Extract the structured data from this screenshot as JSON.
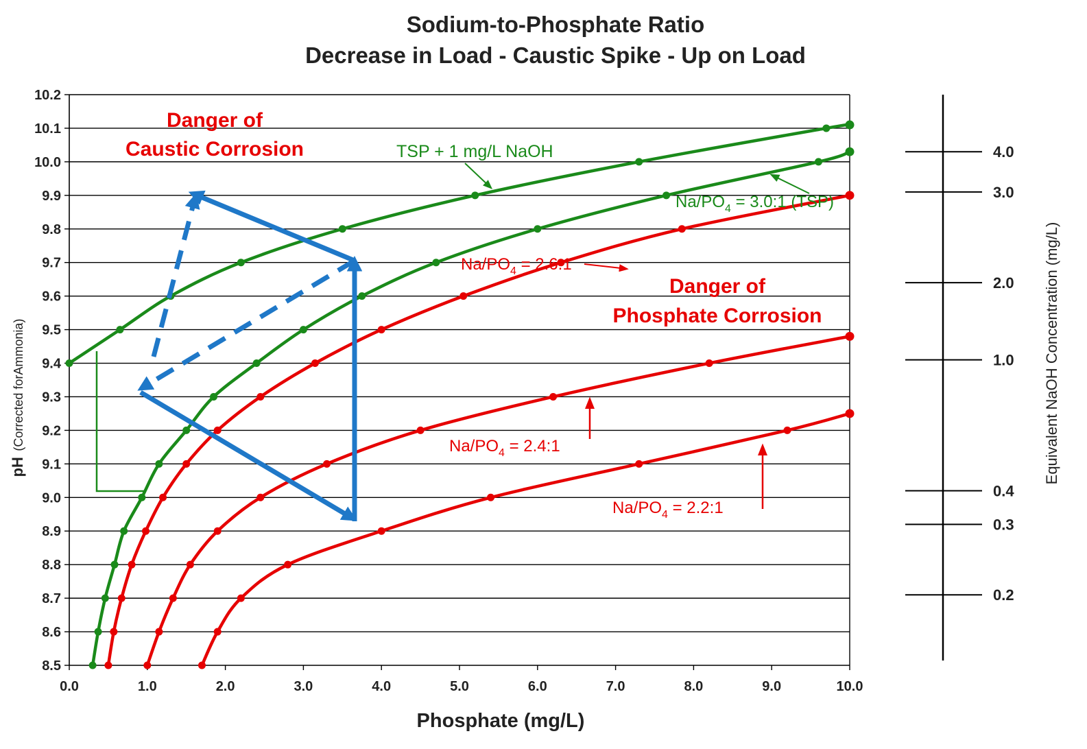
{
  "chart_data": {
    "type": "line",
    "title_line1": "Sodium-to-Phosphate Ratio",
    "title_line2": "Decrease in Load - Caustic Spike - Up on Load",
    "xlabel": "Phosphate (mg/L)",
    "ylabel_main": "pH",
    "ylabel_paren": "(Corrected forAmmonia)",
    "y2label": "Equivalent NaOH Concentration (mg/L)",
    "xlim": [
      0,
      10
    ],
    "ylim": [
      8.5,
      10.2
    ],
    "grid": "horizontal",
    "x_ticks": [
      "0.0",
      "1.0",
      "2.0",
      "3.0",
      "4.0",
      "5.0",
      "6.0",
      "7.0",
      "8.0",
      "9.0",
      "10.0"
    ],
    "y_ticks": [
      "10.2",
      "10.1",
      "10.0",
      "9.9",
      "9.8",
      "9.7",
      "9.6",
      "9.5",
      "9.4",
      "9.3",
      "9.2",
      "9.1",
      "9.0",
      "8.9",
      "8.8",
      "8.7",
      "8.6",
      "8.5"
    ],
    "naoh_scale": [
      {
        "label": "4.0",
        "ph": 10.03
      },
      {
        "label": "3.0",
        "ph": 9.91
      },
      {
        "label": "2.0",
        "ph": 9.64
      },
      {
        "label": "1.0",
        "ph": 9.41
      },
      {
        "label": "0.4",
        "ph": 9.02
      },
      {
        "label": "0.3",
        "ph": 8.92
      },
      {
        "label": "0.2",
        "ph": 8.71
      }
    ],
    "series": [
      {
        "color": "#1a8a1a",
        "points": [
          [
            0,
            9.4
          ],
          [
            0.65,
            9.5
          ],
          [
            1.3,
            9.6
          ],
          [
            2.2,
            9.7
          ],
          [
            3.5,
            9.8
          ],
          [
            5.2,
            9.9
          ],
          [
            7.3,
            10.0
          ],
          [
            9.7,
            10.1
          ],
          [
            10,
            10.11
          ]
        ]
      },
      {
        "color": "#1a8a1a",
        "points": [
          [
            0.3,
            8.5
          ],
          [
            0.37,
            8.6
          ],
          [
            0.46,
            8.7
          ],
          [
            0.58,
            8.8
          ],
          [
            0.7,
            8.9
          ],
          [
            0.93,
            9.0
          ],
          [
            1.15,
            9.1
          ],
          [
            1.5,
            9.2
          ],
          [
            1.85,
            9.3
          ],
          [
            2.4,
            9.4
          ],
          [
            3.0,
            9.5
          ],
          [
            3.75,
            9.6
          ],
          [
            4.7,
            9.7
          ],
          [
            6.0,
            9.8
          ],
          [
            7.65,
            9.9
          ],
          [
            9.6,
            10.0
          ],
          [
            10,
            10.03
          ]
        ]
      },
      {
        "color": "#e60000",
        "points": [
          [
            0.5,
            8.5
          ],
          [
            0.57,
            8.6
          ],
          [
            0.67,
            8.7
          ],
          [
            0.8,
            8.8
          ],
          [
            0.98,
            8.9
          ],
          [
            1.2,
            9.0
          ],
          [
            1.5,
            9.1
          ],
          [
            1.9,
            9.2
          ],
          [
            2.45,
            9.3
          ],
          [
            3.15,
            9.4
          ],
          [
            4.0,
            9.5
          ],
          [
            5.05,
            9.6
          ],
          [
            6.3,
            9.7
          ],
          [
            7.85,
            9.8
          ],
          [
            10,
            9.9
          ]
        ]
      },
      {
        "color": "#e60000",
        "points": [
          [
            1.0,
            8.5
          ],
          [
            1.15,
            8.6
          ],
          [
            1.33,
            8.7
          ],
          [
            1.55,
            8.8
          ],
          [
            1.9,
            8.9
          ],
          [
            2.45,
            9.0
          ],
          [
            3.3,
            9.1
          ],
          [
            4.5,
            9.2
          ],
          [
            6.2,
            9.3
          ],
          [
            8.2,
            9.4
          ],
          [
            10,
            9.48
          ]
        ]
      },
      {
        "color": "#e60000",
        "points": [
          [
            1.7,
            8.5
          ],
          [
            1.9,
            8.6
          ],
          [
            2.2,
            8.7
          ],
          [
            2.8,
            8.8
          ],
          [
            4.0,
            8.9
          ],
          [
            5.4,
            9.0
          ],
          [
            7.3,
            9.1
          ],
          [
            9.2,
            9.2
          ],
          [
            10,
            9.25
          ]
        ]
      }
    ],
    "annotations": {
      "caustic_1": "Danger of",
      "caustic_2": "Caustic Corrosion",
      "phosphate_1": "Danger of",
      "phosphate_2": "Phosphate Corrosion",
      "tsp_naoh": "TSP + 1 mg/L NaOH",
      "ratio_30_a": "Na/PO",
      "ratio_30_sub": "4",
      "ratio_30_b": " = 3.0:1 (TSP)",
      "ratio_26_a": "Na/PO",
      "ratio_26_sub": "4",
      "ratio_26_b": " = 2.6:1",
      "ratio_24_a": "Na/PO",
      "ratio_24_sub": "4",
      "ratio_24_b": " = 2.4:1",
      "ratio_22_a": "Na/PO",
      "ratio_22_sub": "4",
      "ratio_22_b": " = 2.2:1"
    },
    "colors": {
      "green": "#1a8a1a",
      "red": "#e60000",
      "blue": "#1f78c8",
      "grid": "#000000"
    }
  }
}
